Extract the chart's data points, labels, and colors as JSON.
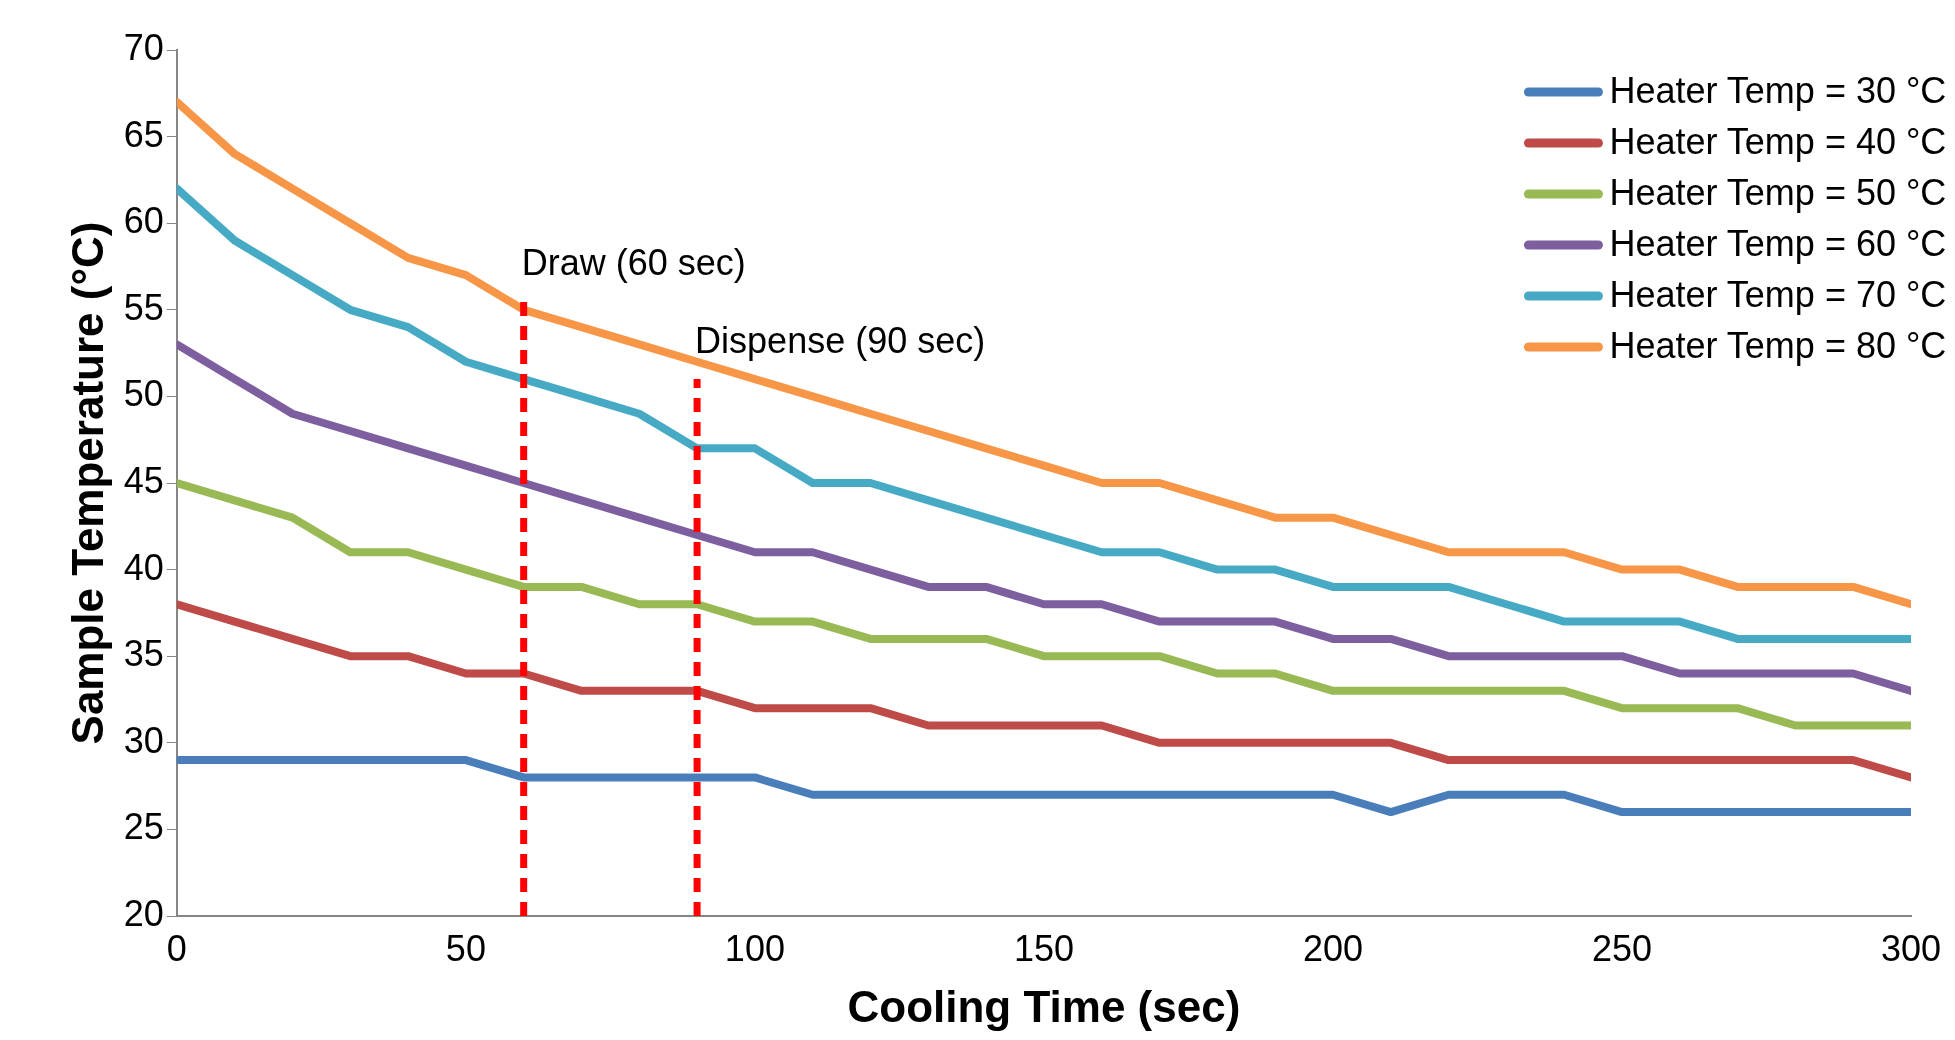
{
  "chart_data": {
    "type": "line",
    "xlabel": "Cooling Time (sec)",
    "ylabel": "Sample Temperature (°C)",
    "x": [
      0,
      10,
      20,
      30,
      40,
      50,
      60,
      70,
      80,
      90,
      100,
      110,
      120,
      130,
      140,
      150,
      160,
      170,
      180,
      190,
      200,
      210,
      220,
      230,
      240,
      250,
      260,
      270,
      280,
      290,
      300
    ],
    "xlim": [
      0,
      300
    ],
    "xticks": [
      0,
      50,
      100,
      150,
      200,
      250,
      300
    ],
    "ylim": [
      20,
      70
    ],
    "yticks": [
      20,
      25,
      30,
      35,
      40,
      45,
      50,
      55,
      60,
      65,
      70
    ],
    "grid": false,
    "legend": "top right",
    "marker": "none",
    "line_style": "solid",
    "series": [
      {
        "name": "Heater Temp = 30 °C",
        "color": "#4a7ebb",
        "values": [
          29,
          29,
          29,
          29,
          29,
          29,
          28,
          28,
          28,
          28,
          28,
          27,
          27,
          27,
          27,
          27,
          27,
          27,
          27,
          27,
          27,
          26,
          27,
          27,
          27,
          26,
          26,
          26,
          26,
          26,
          26
        ]
      },
      {
        "name": "Heater Temp = 40 °C",
        "color": "#be4b48",
        "values": [
          38,
          37,
          36,
          35,
          35,
          34,
          34,
          33,
          33,
          33,
          32,
          32,
          32,
          31,
          31,
          31,
          31,
          30,
          30,
          30,
          30,
          30,
          29,
          29,
          29,
          29,
          29,
          29,
          29,
          29,
          28
        ]
      },
      {
        "name": "Heater Temp = 50 °C",
        "color": "#98b954",
        "values": [
          45,
          44,
          43,
          41,
          41,
          40,
          39,
          39,
          38,
          38,
          37,
          37,
          36,
          36,
          36,
          35,
          35,
          35,
          34,
          34,
          33,
          33,
          33,
          33,
          33,
          32,
          32,
          32,
          31,
          31,
          31
        ]
      },
      {
        "name": "Heater Temp = 60 °C",
        "color": "#7d5fa0",
        "values": [
          53,
          51,
          49,
          48,
          47,
          46,
          45,
          44,
          43,
          42,
          41,
          41,
          40,
          39,
          39,
          38,
          38,
          37,
          37,
          37,
          36,
          36,
          35,
          35,
          35,
          35,
          34,
          34,
          34,
          34,
          33
        ]
      },
      {
        "name": "Heater Temp = 70 °C",
        "color": "#46aac5",
        "values": [
          62,
          59,
          57,
          55,
          54,
          52,
          51,
          50,
          49,
          47,
          47,
          45,
          45,
          44,
          43,
          42,
          41,
          41,
          40,
          40,
          39,
          39,
          39,
          38,
          37,
          37,
          37,
          36,
          36,
          36,
          36
        ]
      },
      {
        "name": "Heater Temp = 80 °C",
        "color": "#f79646",
        "values": [
          67,
          64,
          62,
          60,
          58,
          57,
          55,
          54,
          53,
          52,
          51,
          50,
          49,
          48,
          47,
          46,
          45,
          45,
          44,
          43,
          43,
          42,
          41,
          41,
          41,
          40,
          40,
          39,
          39,
          39,
          38
        ]
      }
    ],
    "ref_lines": [
      {
        "axis": "x",
        "value": 60,
        "label": "Draw (60 sec)",
        "color": "#ff0000",
        "line_style": "dashed"
      },
      {
        "axis": "x",
        "value": 90,
        "label": "Dispense (90 sec)",
        "color": "#ff0000",
        "line_style": "dashed"
      }
    ]
  }
}
